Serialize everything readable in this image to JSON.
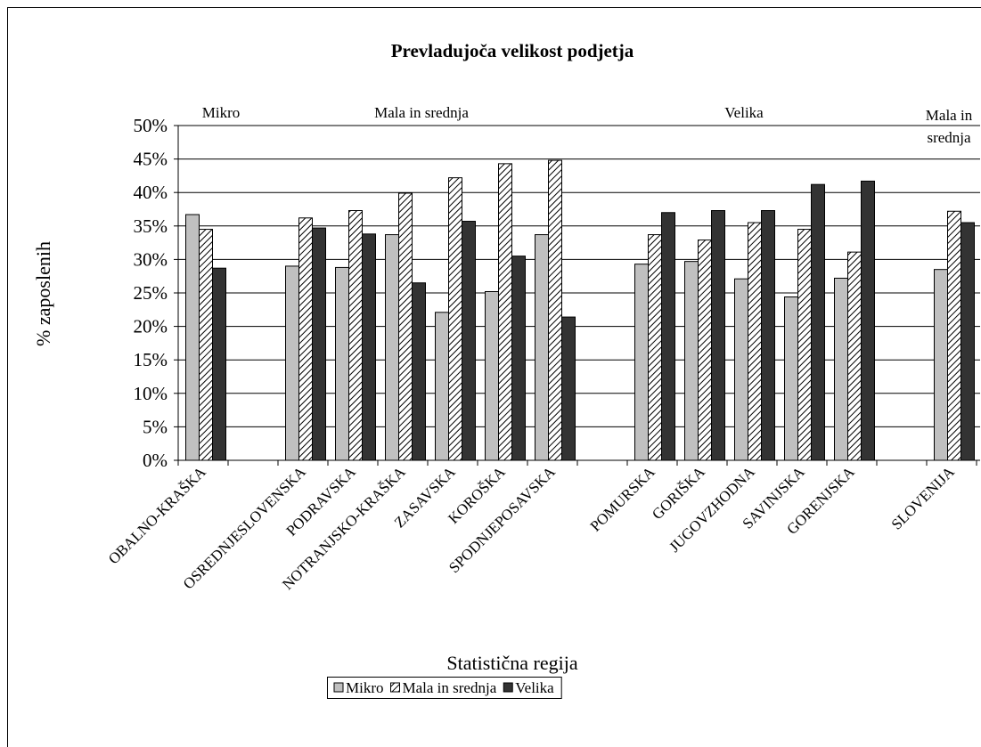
{
  "chart_data": {
    "type": "bar",
    "title": "Prevladujoča velikost podjetja",
    "x_label": "Statistična regija",
    "y_label": "% zaposlenih",
    "categories": [
      "OBALNO-KRAŠKA",
      null,
      "OSREDNJESLOVENSKA",
      "PODRAVSKA",
      "NOTRANJSKO-KRAŠKA",
      "ZASAVSKA",
      "KOROŠKA",
      "SPODNJEPOSAVSKA",
      null,
      "POMURSKA",
      "GORIŠKA",
      "JUGOVZHODNA",
      "SAVINJSKA",
      "GORENJSKA",
      null,
      "SLOVENIJA"
    ],
    "series": [
      {
        "name": "Mikro",
        "color": "#c0c0c0",
        "values": [
          36.7,
          null,
          29.0,
          28.8,
          33.7,
          22.1,
          25.2,
          33.7,
          null,
          29.3,
          29.7,
          27.1,
          24.4,
          27.2,
          null,
          28.5
        ]
      },
      {
        "name": "Mala in srednja",
        "color": "#000000",
        "pattern": "diagonal-hatch",
        "values": [
          34.5,
          null,
          36.2,
          37.3,
          39.9,
          42.2,
          44.3,
          44.8,
          null,
          33.7,
          32.9,
          35.5,
          34.5,
          31.1,
          null,
          37.2
        ]
      },
      {
        "name": "Velika",
        "color": "#333333",
        "values": [
          28.7,
          null,
          34.7,
          33.8,
          26.5,
          35.7,
          30.5,
          21.4,
          null,
          37.0,
          37.3,
          37.3,
          41.2,
          41.7,
          null,
          35.5
        ]
      }
    ],
    "annotations": [
      "Mikro",
      "Mala in srednja",
      "Velika",
      "Mala in srednja"
    ],
    "ylim": [
      0,
      50
    ],
    "yticks": [
      {
        "value": 0,
        "label": "0%"
      },
      {
        "value": 5,
        "label": "5%"
      },
      {
        "value": 10,
        "label": "10%"
      },
      {
        "value": 15,
        "label": "15%"
      },
      {
        "value": 20,
        "label": "20%"
      },
      {
        "value": 25,
        "label": "25%"
      },
      {
        "value": 30,
        "label": "30%"
      },
      {
        "value": 35,
        "label": "35%"
      },
      {
        "value": 40,
        "label": "40%"
      },
      {
        "value": 45,
        "label": "45%"
      },
      {
        "value": 50,
        "label": "50%"
      }
    ],
    "grid": true,
    "legend": "bottom"
  }
}
